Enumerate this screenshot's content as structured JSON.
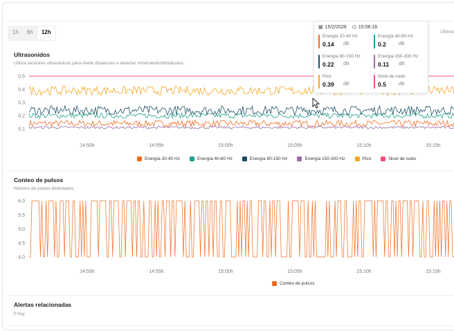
{
  "range_selector": {
    "options": [
      "1h",
      "6h",
      "12h"
    ],
    "active": "12h"
  },
  "header_right": "Última",
  "ultrasonidos": {
    "title": "Ultrasonidos",
    "subtitle": "Utiliza sensores ultrasónicos para medir distancias o detectar movimiento/obstáculos.",
    "y_ticks": [
      "0.5",
      "0.4",
      "0.3",
      "0.2",
      "0.1"
    ],
    "x_ticks": [
      "14:50h",
      "14:55h",
      "15:00h",
      "15:05h",
      "15:10h",
      "15:15h"
    ]
  },
  "pulsos": {
    "title": "Conteo de pulsos",
    "subtitle": "Número de pulsos detectados",
    "y_ticks": [
      "6.0",
      "5.5",
      "5.0",
      "4.5",
      "4.0"
    ],
    "x_ticks": [
      "14:50h",
      "14:55h",
      "15:00h",
      "15:05h",
      "15:10h",
      "15:15h"
    ],
    "legend": "Conteo de pulsos"
  },
  "alertas": {
    "title": "Alertas relacionadas",
    "count": "0 hoy"
  },
  "tooltip": {
    "date": "15/2/2026",
    "time": "15:06:18",
    "items": [
      {
        "label": "Energía 20-40 Hz",
        "value": "0.14",
        "unit": "dB"
      },
      {
        "label": "Energía 40-80 Hz",
        "value": "0.2",
        "unit": "dB"
      },
      {
        "label": "Energía 80-150 Hz",
        "value": "0.22",
        "unit": "dB"
      },
      {
        "label": "Energía 150-300 Hz",
        "value": "0.11",
        "unit": "dB"
      },
      {
        "label": "Pico",
        "value": "0.39",
        "unit": "dB"
      },
      {
        "label": "Nivel de ruido",
        "value": "0.5",
        "unit": "dB"
      }
    ]
  },
  "chart_data": [
    {
      "type": "line",
      "title": "Ultrasonidos",
      "x_range": [
        "14:45h",
        "15:17h"
      ],
      "ylim": [
        0.05,
        0.52
      ],
      "grid": false,
      "legend_position": "bottom",
      "series": [
        {
          "name": "Energía 20-40 Hz",
          "color": "#f06a1e",
          "mean": 0.14,
          "amplitude": 0.025
        },
        {
          "name": "Energía 40-80 Hz",
          "color": "#1fa08f",
          "mean": 0.2,
          "amplitude": 0.02
        },
        {
          "name": "Energía 80-150 Hz",
          "color": "#1c4e66",
          "mean": 0.24,
          "amplitude": 0.035
        },
        {
          "name": "Energía 150-300 Hz",
          "color": "#9a6aa6",
          "mean": 0.11,
          "amplitude": 0.01
        },
        {
          "name": "Pico",
          "color": "#f5a623",
          "mean": 0.39,
          "amplitude": 0.035
        },
        {
          "name": "Nivel de ruido",
          "color": "#f0507a",
          "mean": 0.5,
          "amplitude": 0
        }
      ]
    },
    {
      "type": "line",
      "title": "Conteo de pulsos",
      "x_range": [
        "14:45h",
        "15:17h"
      ],
      "ylim": [
        4.0,
        6.0
      ],
      "grid": false,
      "legend_position": "bottom",
      "series": [
        {
          "name": "Conteo de pulsos",
          "color": "#f06a1e",
          "values_set": [
            4,
            6
          ],
          "note_values": "alternates between 4 and 6 pulses"
        }
      ]
    }
  ]
}
